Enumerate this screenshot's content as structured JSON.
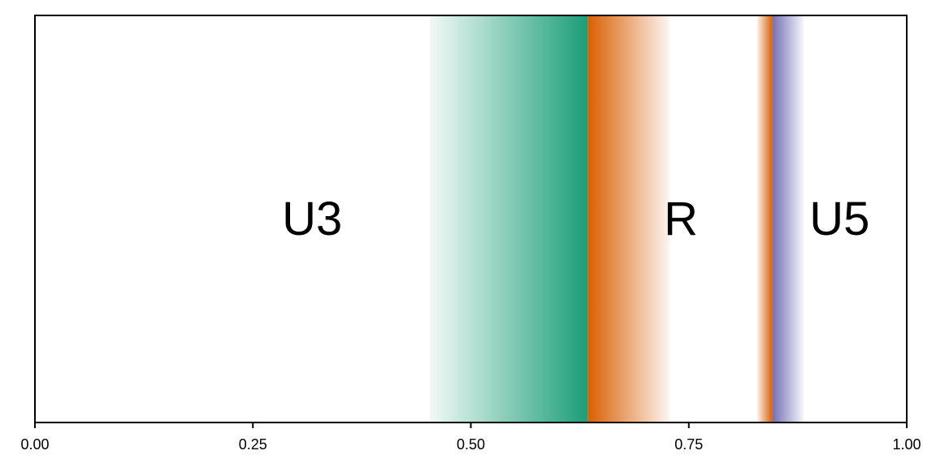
{
  "chart_data": {
    "type": "area",
    "title": "",
    "xlabel": "",
    "ylabel": "",
    "xlim": [
      0,
      1
    ],
    "x_ticks": [
      0,
      0.25,
      0.5,
      0.75,
      1.0
    ],
    "x_tick_labels": [
      "0.00",
      "0.25",
      "0.50",
      "0.75",
      "1.00"
    ],
    "y_ticks": [],
    "grid": false,
    "bands": [
      {
        "id": "u3-fade",
        "start": 0.453,
        "end": 0.634,
        "color": "#1b9e77",
        "fade": "left"
      },
      {
        "id": "r-fade",
        "start": 0.634,
        "end": 0.728,
        "color": "#d95f02",
        "fade": "right"
      },
      {
        "id": "r-edge",
        "start": 0.828,
        "end": 0.846,
        "color": "#d95f02",
        "fade": "left"
      },
      {
        "id": "u5-fade",
        "start": 0.846,
        "end": 0.882,
        "color": "#7570b3",
        "fade": "right"
      }
    ],
    "region_labels": [
      {
        "text": "U3",
        "x": 0.318
      },
      {
        "text": "R",
        "x": 0.741
      },
      {
        "text": "U5",
        "x": 0.923
      }
    ]
  }
}
